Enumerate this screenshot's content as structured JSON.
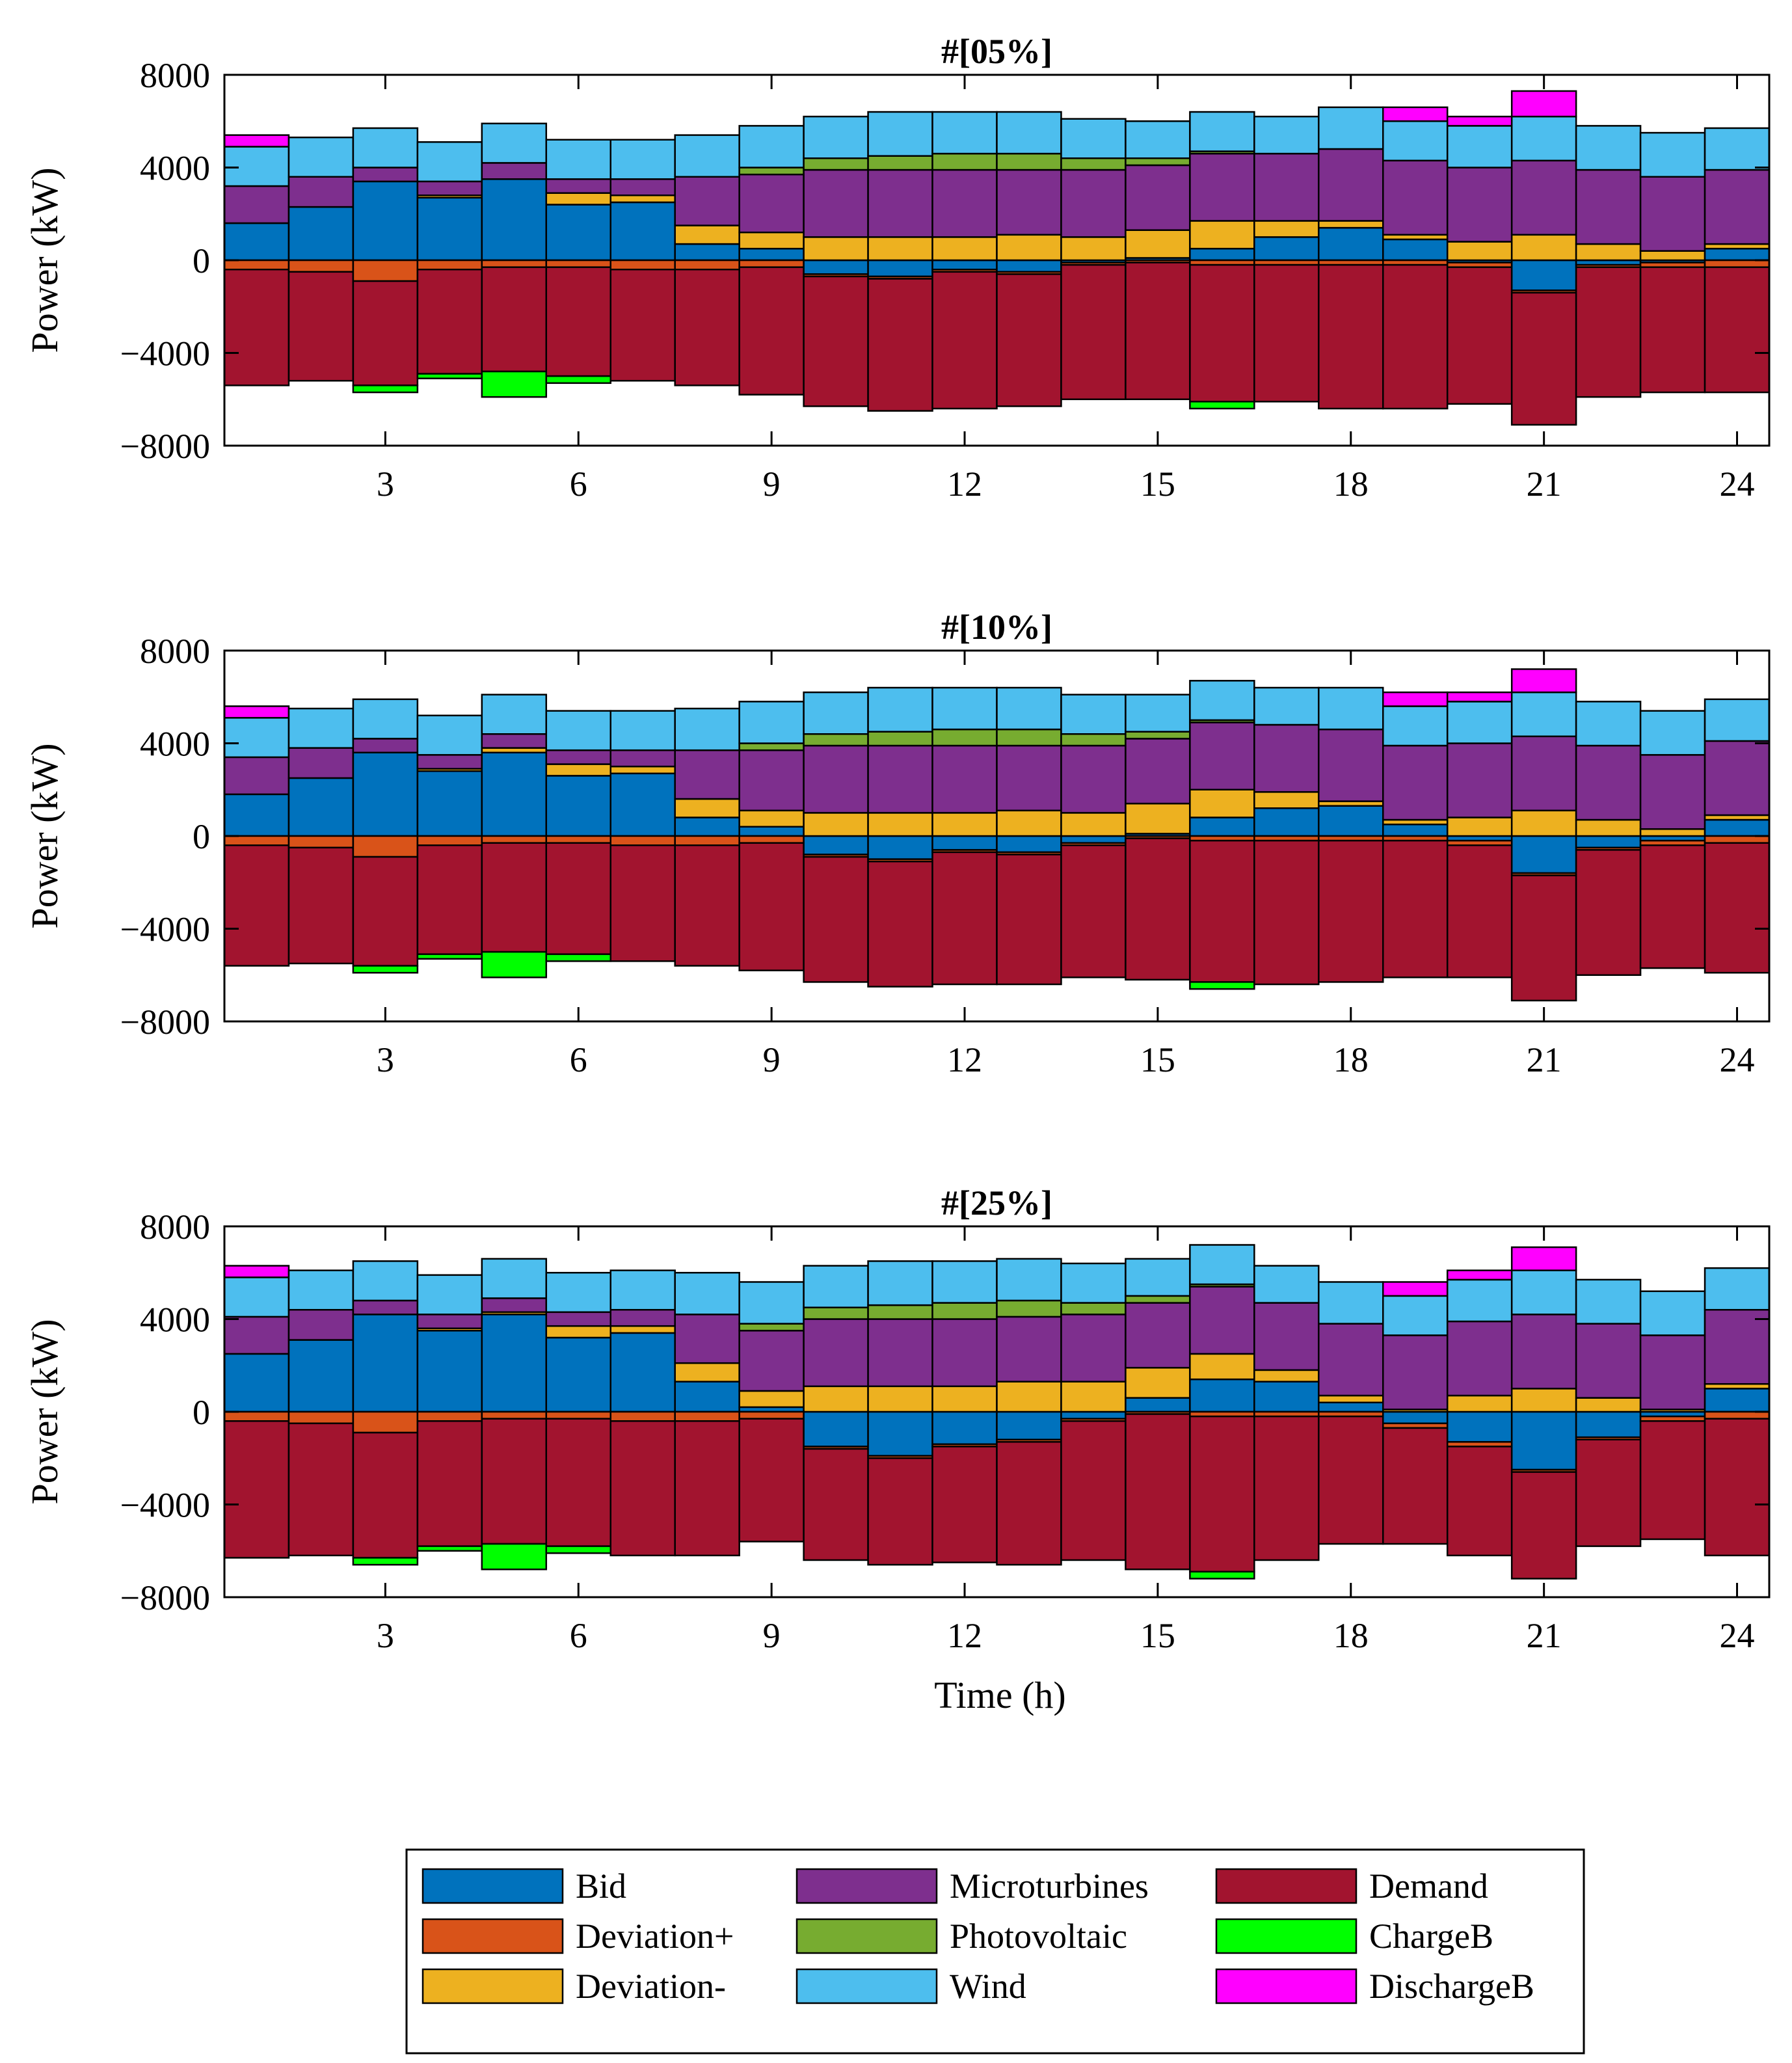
{
  "chart_data": [
    {
      "type": "bar",
      "stacked": true,
      "title": "#[05%]",
      "xlabel": "",
      "ylabel": "Power (kW)",
      "x": [
        1,
        2,
        3,
        4,
        5,
        6,
        7,
        8,
        9,
        10,
        11,
        12,
        13,
        14,
        15,
        16,
        17,
        18,
        19,
        20,
        21,
        22,
        23,
        24
      ],
      "xticks": [
        3,
        6,
        9,
        12,
        15,
        18,
        21,
        24
      ],
      "xtick_labels": [
        "3",
        "6",
        "9",
        "12",
        "15",
        "18",
        "21",
        "24"
      ],
      "yticks": [
        -8000,
        -4000,
        0,
        4000,
        8000
      ],
      "ytick_labels": [
        "−8000",
        "−4000",
        "0",
        "4000",
        "8000"
      ],
      "ylim": [
        -8000,
        8000
      ],
      "series": [
        {
          "name": "Bid",
          "values": [
            1600,
            2300,
            3400,
            2700,
            3500,
            2400,
            2500,
            700,
            500,
            -600,
            -700,
            -400,
            -500,
            -100,
            100,
            500,
            1000,
            1400,
            900,
            -100,
            -1300,
            -200,
            -100,
            500
          ]
        },
        {
          "name": "Deviation+",
          "values": [
            -400,
            -500,
            -900,
            -400,
            -300,
            -300,
            -400,
            -400,
            -300,
            -100,
            -100,
            -100,
            -100,
            -100,
            -100,
            -200,
            -200,
            -200,
            -200,
            -200,
            -100,
            -100,
            -200,
            -300
          ]
        },
        {
          "name": "Deviation-",
          "values": [
            0,
            0,
            0,
            100,
            0,
            500,
            300,
            800,
            700,
            1000,
            1000,
            1000,
            1100,
            1000,
            1200,
            1200,
            700,
            300,
            200,
            800,
            1100,
            700,
            400,
            200
          ]
        },
        {
          "name": "Microturbines",
          "values": [
            1600,
            1300,
            600,
            600,
            700,
            600,
            700,
            2100,
            2500,
            2900,
            2900,
            2900,
            2800,
            2900,
            2800,
            2900,
            2900,
            3100,
            3200,
            3200,
            3200,
            3200,
            3200,
            3200
          ]
        },
        {
          "name": "Photovoltaic",
          "values": [
            0,
            0,
            0,
            0,
            0,
            0,
            0,
            0,
            300,
            500,
            600,
            700,
            700,
            500,
            300,
            100,
            0,
            0,
            0,
            0,
            0,
            0,
            0,
            0
          ]
        },
        {
          "name": "Wind",
          "values": [
            1700,
            1700,
            1700,
            1700,
            1700,
            1700,
            1700,
            1800,
            1800,
            1800,
            1900,
            1800,
            1800,
            1700,
            1600,
            1700,
            1600,
            1800,
            1700,
            1800,
            1900,
            1900,
            1900,
            1800
          ]
        },
        {
          "name": "Demand",
          "values": [
            -5000,
            -4700,
            -4500,
            -4500,
            -4500,
            -4700,
            -4800,
            -5000,
            -5500,
            -5600,
            -5700,
            -5900,
            -5700,
            -5800,
            -5900,
            -5900,
            -5900,
            -6200,
            -6200,
            -5900,
            -5700,
            -5600,
            -5400,
            -5400
          ]
        },
        {
          "name": "ChargeB",
          "values": [
            0,
            0,
            -300,
            -200,
            -1100,
            -300,
            0,
            0,
            0,
            0,
            0,
            0,
            0,
            0,
            0,
            -300,
            0,
            0,
            0,
            0,
            0,
            0,
            0,
            0
          ]
        },
        {
          "name": "DischargeB",
          "values": [
            500,
            0,
            0,
            0,
            0,
            0,
            0,
            0,
            0,
            0,
            0,
            0,
            0,
            0,
            0,
            0,
            0,
            0,
            600,
            400,
            1100,
            0,
            0,
            0
          ]
        }
      ]
    },
    {
      "type": "bar",
      "stacked": true,
      "title": "#[10%]",
      "xlabel": "",
      "ylabel": "Power (kW)",
      "x": [
        1,
        2,
        3,
        4,
        5,
        6,
        7,
        8,
        9,
        10,
        11,
        12,
        13,
        14,
        15,
        16,
        17,
        18,
        19,
        20,
        21,
        22,
        23,
        24
      ],
      "xticks": [
        3,
        6,
        9,
        12,
        15,
        18,
        21,
        24
      ],
      "xtick_labels": [
        "3",
        "6",
        "9",
        "12",
        "15",
        "18",
        "21",
        "24"
      ],
      "yticks": [
        -8000,
        -4000,
        0,
        4000,
        8000
      ],
      "ytick_labels": [
        "−8000",
        "−4000",
        "0",
        "4000",
        "8000"
      ],
      "ylim": [
        -8000,
        8000
      ],
      "series": [
        {
          "name": "Bid",
          "values": [
            1800,
            2500,
            3600,
            2800,
            3600,
            2600,
            2700,
            800,
            400,
            -800,
            -1000,
            -600,
            -700,
            -300,
            100,
            800,
            1200,
            1300,
            500,
            -200,
            -1600,
            -500,
            -200,
            700
          ]
        },
        {
          "name": "Deviation+",
          "values": [
            -400,
            -500,
            -900,
            -400,
            -300,
            -300,
            -400,
            -400,
            -300,
            -100,
            -100,
            -100,
            -100,
            -100,
            -100,
            -200,
            -200,
            -200,
            -200,
            -200,
            -100,
            -100,
            -200,
            -300
          ]
        },
        {
          "name": "Deviation-",
          "values": [
            0,
            0,
            0,
            100,
            200,
            500,
            300,
            800,
            700,
            1000,
            1000,
            1000,
            1100,
            1000,
            1300,
            1200,
            700,
            200,
            200,
            800,
            1100,
            700,
            300,
            200
          ]
        },
        {
          "name": "Microturbines",
          "values": [
            1600,
            1300,
            600,
            600,
            600,
            600,
            700,
            2100,
            2600,
            2900,
            2900,
            2900,
            2800,
            2900,
            2800,
            2900,
            2900,
            3100,
            3200,
            3200,
            3200,
            3200,
            3200,
            3200
          ]
        },
        {
          "name": "Photovoltaic",
          "values": [
            0,
            0,
            0,
            0,
            0,
            0,
            0,
            0,
            300,
            500,
            600,
            700,
            700,
            500,
            300,
            100,
            0,
            0,
            0,
            0,
            0,
            0,
            0,
            0
          ]
        },
        {
          "name": "Wind",
          "values": [
            1700,
            1700,
            1700,
            1700,
            1700,
            1700,
            1700,
            1800,
            1800,
            1800,
            1900,
            1800,
            1800,
            1700,
            1600,
            1700,
            1600,
            1800,
            1700,
            1800,
            1900,
            1900,
            1900,
            1800
          ]
        },
        {
          "name": "Demand",
          "values": [
            -5200,
            -5000,
            -4700,
            -4700,
            -4700,
            -4800,
            -5000,
            -5200,
            -5500,
            -5400,
            -5400,
            -5700,
            -5600,
            -5700,
            -6100,
            -6100,
            -6200,
            -6100,
            -5900,
            -5700,
            -5400,
            -5400,
            -5300,
            -5600
          ]
        },
        {
          "name": "ChargeB",
          "values": [
            0,
            0,
            -300,
            -200,
            -1100,
            -300,
            0,
            0,
            0,
            0,
            0,
            0,
            0,
            0,
            0,
            -300,
            0,
            0,
            0,
            0,
            0,
            0,
            0,
            0
          ]
        },
        {
          "name": "DischargeB",
          "values": [
            500,
            0,
            0,
            0,
            0,
            0,
            0,
            0,
            0,
            0,
            0,
            0,
            0,
            0,
            0,
            0,
            0,
            0,
            600,
            400,
            1000,
            0,
            0,
            0
          ]
        }
      ]
    },
    {
      "type": "bar",
      "stacked": true,
      "title": "#[25%]",
      "xlabel": "Time (h)",
      "ylabel": "Power (kW)",
      "x": [
        1,
        2,
        3,
        4,
        5,
        6,
        7,
        8,
        9,
        10,
        11,
        12,
        13,
        14,
        15,
        16,
        17,
        18,
        19,
        20,
        21,
        22,
        23,
        24
      ],
      "xticks": [
        3,
        6,
        9,
        12,
        15,
        18,
        21,
        24
      ],
      "xtick_labels": [
        "3",
        "6",
        "9",
        "12",
        "15",
        "18",
        "21",
        "24"
      ],
      "yticks": [
        -8000,
        -4000,
        0,
        4000,
        8000
      ],
      "ytick_labels": [
        "−8000",
        "−4000",
        "0",
        "4000",
        "8000"
      ],
      "ylim": [
        -8000,
        8000
      ],
      "series": [
        {
          "name": "Bid",
          "values": [
            2500,
            3100,
            4200,
            3500,
            4200,
            3200,
            3400,
            1300,
            200,
            -1500,
            -1900,
            -1400,
            -1200,
            -300,
            600,
            1400,
            1300,
            400,
            -500,
            -1300,
            -2500,
            -1100,
            -200,
            1000
          ]
        },
        {
          "name": "Deviation+",
          "values": [
            -400,
            -500,
            -900,
            -400,
            -300,
            -300,
            -400,
            -400,
            -300,
            -100,
            -100,
            -100,
            -100,
            -100,
            -100,
            -200,
            -200,
            -200,
            -200,
            -200,
            -100,
            -100,
            -200,
            -300
          ]
        },
        {
          "name": "Deviation-",
          "values": [
            0,
            0,
            0,
            100,
            100,
            500,
            300,
            800,
            700,
            1100,
            1100,
            1100,
            1300,
            1300,
            1300,
            1100,
            500,
            300,
            100,
            700,
            1000,
            600,
            100,
            200
          ]
        },
        {
          "name": "Microturbines",
          "values": [
            1600,
            1300,
            600,
            600,
            600,
            600,
            700,
            2100,
            2600,
            2900,
            2900,
            2900,
            2800,
            2900,
            2800,
            2900,
            2900,
            3100,
            3200,
            3200,
            3200,
            3200,
            3200,
            3200
          ]
        },
        {
          "name": "Photovoltaic",
          "values": [
            0,
            0,
            0,
            0,
            0,
            0,
            0,
            0,
            300,
            500,
            600,
            700,
            700,
            500,
            300,
            100,
            0,
            0,
            0,
            0,
            0,
            0,
            0,
            0
          ]
        },
        {
          "name": "Wind",
          "values": [
            1700,
            1700,
            1700,
            1700,
            1700,
            1700,
            1700,
            1800,
            1800,
            1800,
            1900,
            1800,
            1800,
            1700,
            1600,
            1700,
            1600,
            1800,
            1700,
            1800,
            1900,
            1900,
            1900,
            1800
          ]
        },
        {
          "name": "Demand",
          "values": [
            -5900,
            -5700,
            -5400,
            -5400,
            -5400,
            -5500,
            -5800,
            -5800,
            -5300,
            -4800,
            -4600,
            -5000,
            -5300,
            -6000,
            -6700,
            -6700,
            -6200,
            -5500,
            -5000,
            -4700,
            -4600,
            -4600,
            -5100,
            -5900
          ]
        },
        {
          "name": "ChargeB",
          "values": [
            0,
            0,
            -300,
            -200,
            -1100,
            -300,
            0,
            0,
            0,
            0,
            0,
            0,
            0,
            0,
            0,
            -300,
            0,
            0,
            0,
            0,
            0,
            0,
            0,
            0
          ]
        },
        {
          "name": "DischargeB",
          "values": [
            500,
            0,
            0,
            0,
            0,
            0,
            0,
            0,
            0,
            0,
            0,
            0,
            0,
            0,
            0,
            0,
            0,
            0,
            600,
            400,
            1000,
            0,
            0,
            0
          ]
        }
      ]
    }
  ],
  "legend": {
    "placement": "bottom-center",
    "entries": [
      {
        "label": "Bid",
        "color": "#0072BD"
      },
      {
        "label": "Deviation+",
        "color": "#D95319"
      },
      {
        "label": "Deviation-",
        "color": "#EDB120"
      },
      {
        "label": "Microturbines",
        "color": "#7E2F8E"
      },
      {
        "label": "Photovoltaic",
        "color": "#77AC30"
      },
      {
        "label": "Wind",
        "color": "#4DBEEE"
      },
      {
        "label": "Demand",
        "color": "#A2142F"
      },
      {
        "label": "ChargeB",
        "color": "#00FF00"
      },
      {
        "label": "DischargeB",
        "color": "#FF00FF"
      }
    ]
  }
}
